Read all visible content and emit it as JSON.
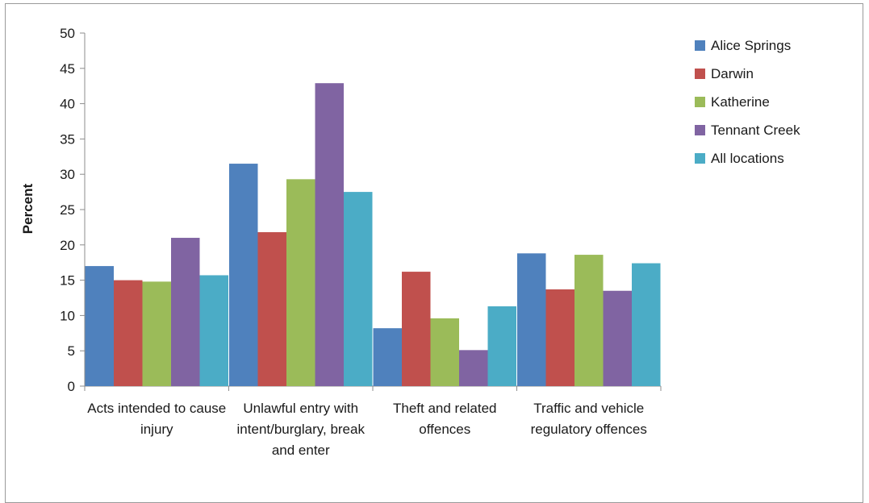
{
  "chart_data": {
    "type": "bar",
    "ylabel": "Percent",
    "xlabel": "",
    "ylim": [
      0,
      50
    ],
    "ytick_step": 5,
    "yticks": [
      "0",
      "5",
      "10",
      "15",
      "20",
      "25",
      "30",
      "35",
      "40",
      "45",
      "50"
    ],
    "grid": false,
    "legend_position": "top-right",
    "categories": [
      [
        "Acts intended to cause",
        "injury"
      ],
      [
        "Unlawful entry with",
        "intent/burglary, break",
        "and enter"
      ],
      [
        "Theft and related",
        "offences"
      ],
      [
        "Traffic and vehicle",
        "regulatory offences"
      ]
    ],
    "series": [
      {
        "name": "Alice Springs",
        "color": "#4f81bd",
        "values": [
          17.0,
          31.5,
          8.2,
          18.8
        ]
      },
      {
        "name": "Darwin",
        "color": "#c0504d",
        "values": [
          15.0,
          21.8,
          16.2,
          13.7
        ]
      },
      {
        "name": "Katherine",
        "color": "#9bbb59",
        "values": [
          14.8,
          29.3,
          9.6,
          18.6
        ]
      },
      {
        "name": "Tennant Creek",
        "color": "#8064a2",
        "values": [
          21.0,
          42.9,
          5.1,
          13.5
        ]
      },
      {
        "name": "All locations",
        "color": "#4bacc6",
        "values": [
          15.7,
          27.5,
          11.3,
          17.4
        ]
      }
    ]
  }
}
